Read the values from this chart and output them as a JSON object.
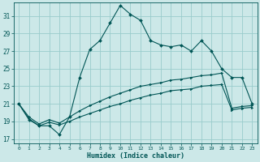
{
  "xlabel": "Humidex (Indice chaleur)",
  "bg_color": "#cce8e8",
  "grid_color": "#99cccc",
  "line_color": "#005555",
  "xlim": [
    -0.5,
    23.5
  ],
  "ylim": [
    16.5,
    32.5
  ],
  "xticks": [
    0,
    1,
    2,
    3,
    4,
    5,
    6,
    7,
    8,
    9,
    10,
    11,
    12,
    13,
    14,
    15,
    16,
    17,
    18,
    19,
    20,
    21,
    22,
    23
  ],
  "yticks": [
    17,
    19,
    21,
    23,
    25,
    27,
    29,
    31
  ],
  "line1_x": [
    0,
    1,
    2,
    3,
    4,
    5,
    6,
    7,
    8,
    9,
    10,
    11,
    12,
    13,
    14,
    15,
    16,
    17,
    18,
    19,
    20,
    21,
    22,
    23
  ],
  "line1_y": [
    21.0,
    19.2,
    18.5,
    18.5,
    17.5,
    19.5,
    24.0,
    27.2,
    28.2,
    30.2,
    32.2,
    31.2,
    30.5,
    28.2,
    27.7,
    27.5,
    27.7,
    27.0,
    28.2,
    27.0,
    25.0,
    24.0,
    24.0,
    21.0
  ],
  "line2_x": [
    0,
    1,
    2,
    3,
    4,
    5,
    6,
    7,
    8,
    9,
    10,
    11,
    12,
    13,
    14,
    15,
    16,
    17,
    18,
    19,
    20,
    21,
    22,
    23
  ],
  "line2_y": [
    21.0,
    19.5,
    18.7,
    19.2,
    18.8,
    19.5,
    20.2,
    20.8,
    21.3,
    21.8,
    22.2,
    22.6,
    23.0,
    23.2,
    23.4,
    23.7,
    23.8,
    24.0,
    24.2,
    24.3,
    24.5,
    20.5,
    20.7,
    20.8
  ],
  "line3_x": [
    0,
    1,
    2,
    3,
    4,
    5,
    6,
    7,
    8,
    9,
    10,
    11,
    12,
    13,
    14,
    15,
    16,
    17,
    18,
    19,
    20,
    21,
    22,
    23
  ],
  "line3_y": [
    21.0,
    19.3,
    18.5,
    18.9,
    18.6,
    19.0,
    19.5,
    19.9,
    20.3,
    20.7,
    21.0,
    21.4,
    21.7,
    22.0,
    22.2,
    22.5,
    22.6,
    22.7,
    23.0,
    23.1,
    23.2,
    20.3,
    20.5,
    20.6
  ]
}
